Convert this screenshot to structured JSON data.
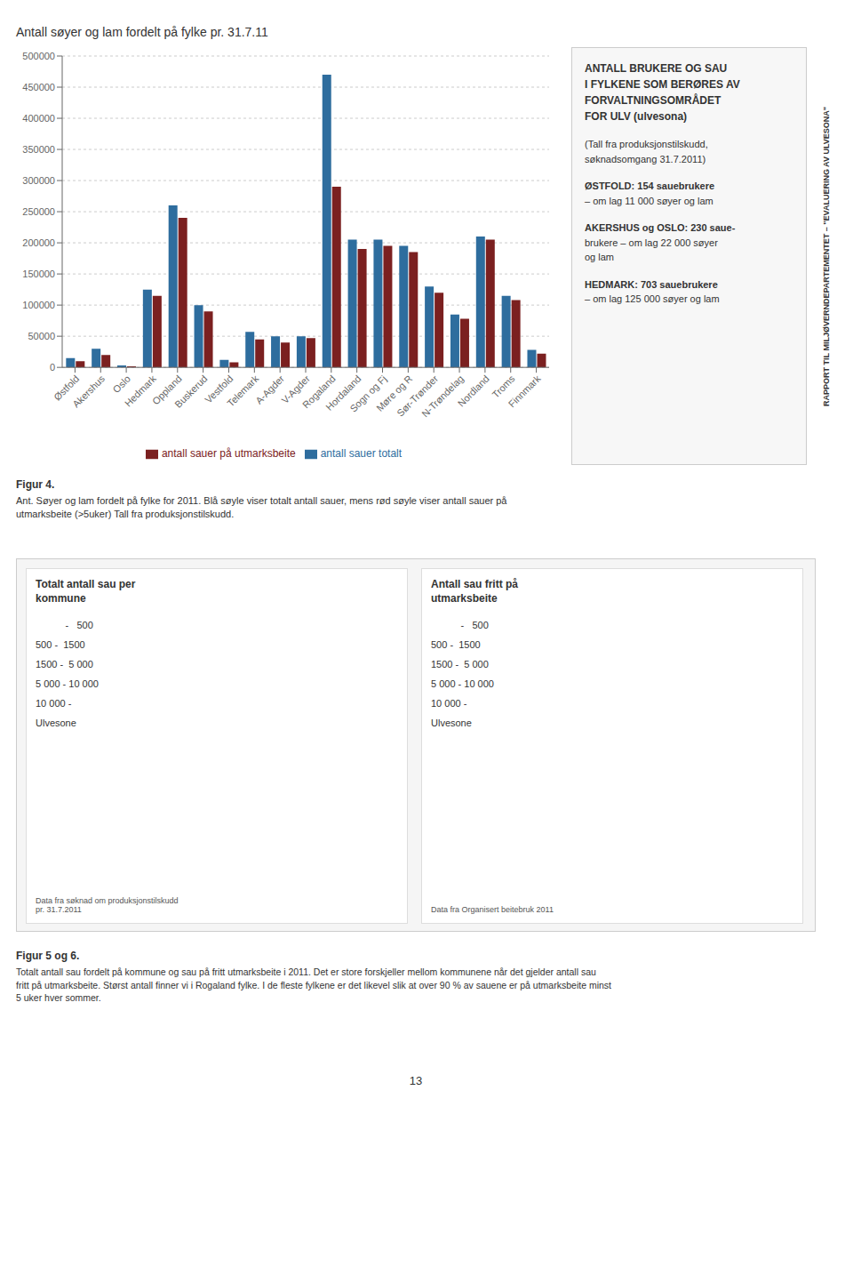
{
  "chart_data": {
    "type": "bar",
    "title": "Antall søyer og lam fordelt på fylke pr. 31.7.11",
    "categories": [
      "Østfold",
      "Akershus",
      "Oslo",
      "Hedmark",
      "Oppland",
      "Buskerud",
      "Vestfold",
      "Telemark",
      "A-Agder",
      "V-Agder",
      "Rogaland",
      "Hordaland",
      "Sogn og Fj",
      "Møre og R",
      "Sør-Trønder",
      "N-Trøndelag",
      "Nordland",
      "Troms",
      "Finnmark"
    ],
    "series": [
      {
        "name": "antall sauer totalt",
        "color": "#2E6D9E",
        "values": [
          15000,
          30000,
          3000,
          125000,
          260000,
          100000,
          12000,
          57000,
          50000,
          50000,
          470000,
          205000,
          205000,
          195000,
          130000,
          85000,
          210000,
          115000,
          28000
        ]
      },
      {
        "name": "antall sauer på utmarksbeite",
        "color": "#7B2020",
        "values": [
          10000,
          20000,
          1500,
          115000,
          240000,
          90000,
          8000,
          45000,
          40000,
          47000,
          290000,
          190000,
          195000,
          185000,
          120000,
          78000,
          205000,
          108000,
          22000
        ]
      }
    ],
    "ylim": [
      0,
      500000
    ],
    "yticks": [
      0,
      50000,
      100000,
      150000,
      200000,
      250000,
      300000,
      350000,
      400000,
      450000,
      500000
    ],
    "grid": true,
    "legend": "bottom",
    "annotations": [
      "Figur 4.",
      "Ant. Søyer og lam fordelt på fylke for 2011. Blå søyle viser totalt antall sauer, mens rød søyle viser antall sauer på utmarksbeite (>5uker) Tall fra produksjonstilskudd.",
      "ANTALL BRUKERE OG SAU",
      "I FYLKENE SOM BERØRES AV",
      "FORVALTNINGSOMRÅDET",
      "FOR ULV (ulvesona)",
      "(Tall fra produksjonstilskudd,",
      "søknadsomgang 31.7.2011)",
      "ØSTFOLD: 154 sauebrukere",
      "– om lag 11 000 søyer og lam",
      "AKERSHUS og OSLO: 230 saue-",
      "brukere – om lag 22 000 søyer",
      "og lam",
      "HEDMARK: 703 sauebrukere",
      "– om lag 125 000 søyer og lam",
      "Totalt antall sau per\nkommune",
      "           -   500",
      "500 -  1500",
      "1500 -  5 000",
      "5 000 - 10 000",
      "10 000 -",
      "Ulvesone",
      "Data fra søknad om produksjonstilskudd\npr. 31.7.2011",
      "Antall sau fritt på\nutmarksbeite",
      "           -   500",
      "500 -  1500",
      "1500 -  5 000",
      "5 000 - 10 000",
      "10 000 -",
      "Ulvesone",
      "Data fra Organisert beitebruk 2011",
      "Figur 5 og 6.",
      "Totalt antall sau fordelt på kommune og sau på fritt utmarksbeite i 2011. Det er store forskjeller mellom kommunene når det gjelder antall sau\nfritt på utmarksbeite. Størst antall finner vi i Rogaland fylke. I de fleste fylkene er det likevel slik at over 90 % av sauene er på utmarksbeite minst\n5 uker hver sommer.",
      "13",
      "RAPPORT TIL MILJØVERNDEPARTEMENTET – \"EVALUERING AV ULVESONA\""
    ]
  }
}
